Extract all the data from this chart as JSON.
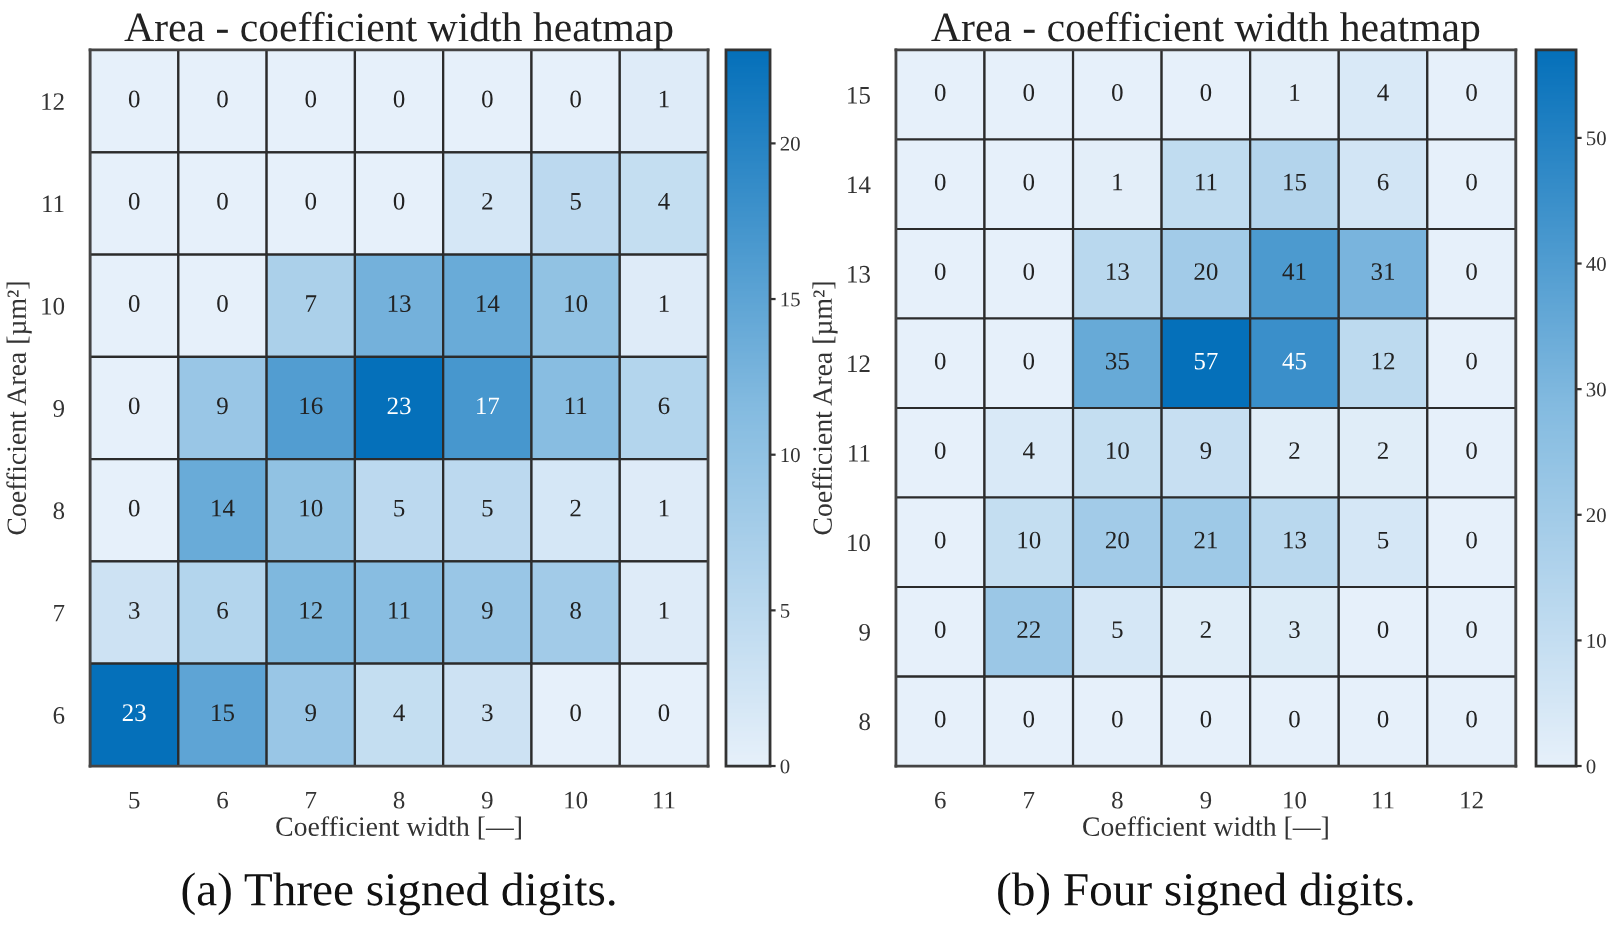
{
  "chart_data": [
    {
      "type": "heatmap",
      "title": "Area - coefficient width heatmap",
      "xlabel": "Coefficient width [—]",
      "ylabel": "Coefficient Area [µm²]",
      "categories": [
        "5",
        "6",
        "7",
        "8",
        "9",
        "10",
        "11"
      ],
      "y_categories": [
        "12",
        "11",
        "10",
        "9",
        "8",
        "7",
        "6"
      ],
      "cells": [
        [
          0,
          0,
          0,
          0,
          0,
          0,
          1
        ],
        [
          0,
          0,
          0,
          0,
          2,
          5,
          4
        ],
        [
          0,
          0,
          7,
          13,
          14,
          10,
          1
        ],
        [
          0,
          9,
          16,
          23,
          17,
          11,
          6
        ],
        [
          0,
          14,
          10,
          5,
          5,
          2,
          1
        ],
        [
          3,
          6,
          12,
          11,
          9,
          8,
          1
        ],
        [
          23,
          15,
          9,
          4,
          3,
          0,
          0
        ]
      ],
      "clim": [
        0,
        23
      ],
      "cticks": [
        0,
        5,
        10,
        15,
        20
      ],
      "data_labels": true,
      "annotations": [
        "(a) Three signed digits."
      ]
    },
    {
      "type": "heatmap",
      "title": "Area - coefficient width heatmap",
      "xlabel": "Coefficient width [—]",
      "ylabel": "Coefficient Area [µm²]",
      "categories": [
        "6",
        "7",
        "8",
        "9",
        "10",
        "11",
        "12"
      ],
      "y_categories": [
        "15",
        "14",
        "13",
        "12",
        "11",
        "10",
        "9",
        "8"
      ],
      "cells": [
        [
          0,
          0,
          0,
          0,
          1,
          4,
          0
        ],
        [
          0,
          0,
          1,
          11,
          15,
          6,
          0
        ],
        [
          0,
          0,
          13,
          20,
          41,
          31,
          0
        ],
        [
          0,
          0,
          35,
          57,
          45,
          12,
          0
        ],
        [
          0,
          4,
          10,
          9,
          2,
          2,
          0
        ],
        [
          0,
          10,
          20,
          21,
          13,
          5,
          0
        ],
        [
          0,
          22,
          5,
          2,
          3,
          0,
          0
        ],
        [
          0,
          0,
          0,
          0,
          0,
          0,
          0
        ]
      ],
      "clim": [
        0,
        57
      ],
      "cticks": [
        0,
        10,
        20,
        30,
        40,
        50
      ],
      "data_labels": true,
      "annotations": [
        "(b) Four signed digits."
      ]
    }
  ]
}
